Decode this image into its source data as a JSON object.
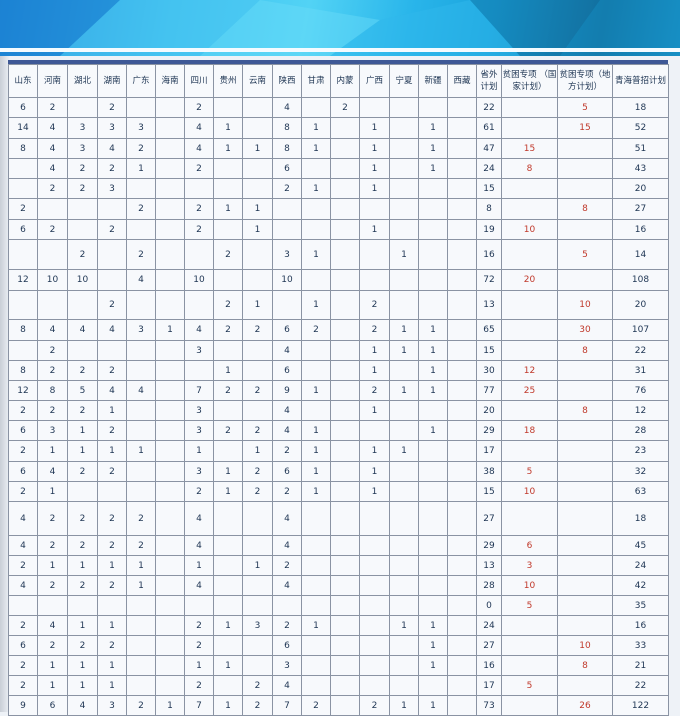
{
  "colors": {
    "header_bar": "#3e5896",
    "text": "#1e3553",
    "special": "#c0392b",
    "banner": "#29b5ea"
  },
  "table": {
    "headers": [
      "山东",
      "河南",
      "湖北",
      "湖南",
      "广东",
      "海南",
      "四川",
      "贵州",
      "云南",
      "陕西",
      "甘肃",
      "内蒙",
      "广西",
      "宁夏",
      "新疆",
      "西藏",
      "省外计划",
      "贫困专项 （国家计划）",
      "贫困专项（地方计划）",
      "青海普招计划"
    ],
    "rows": [
      [
        "6",
        "2",
        "",
        "2",
        "",
        "",
        "2",
        "",
        "",
        "4",
        "",
        "2",
        "",
        "",
        "",
        "",
        "22",
        "",
        "5",
        "18"
      ],
      [
        "14",
        "4",
        "3",
        "3",
        "3",
        "",
        "4",
        "1",
        "",
        "8",
        "1",
        "",
        "1",
        "",
        "1",
        "",
        "61",
        "",
        "15",
        "52"
      ],
      [
        "8",
        "4",
        "3",
        "4",
        "2",
        "",
        "4",
        "1",
        "1",
        "8",
        "1",
        "",
        "1",
        "",
        "1",
        "",
        "47",
        "15",
        "",
        "51"
      ],
      [
        "",
        "4",
        "2",
        "2",
        "1",
        "",
        "2",
        "",
        "",
        "6",
        "",
        "",
        "1",
        "",
        "1",
        "",
        "24",
        "8",
        "",
        "43"
      ],
      [
        "",
        "2",
        "2",
        "3",
        "",
        "",
        "",
        "",
        "",
        "2",
        "1",
        "",
        "1",
        "",
        "",
        "",
        "15",
        "",
        "",
        "20"
      ],
      [
        "2",
        "",
        "",
        "",
        "2",
        "",
        "2",
        "1",
        "1",
        "",
        "",
        "",
        "",
        "",
        "",
        "",
        "8",
        "",
        "8",
        "27"
      ],
      [
        "6",
        "2",
        "",
        "2",
        "",
        "",
        "2",
        "",
        "1",
        "",
        "",
        "",
        "1",
        "",
        "",
        "",
        "19",
        "10",
        "",
        "16"
      ],
      [
        "",
        "",
        "2",
        "",
        "2",
        "",
        "",
        "2",
        "",
        "3",
        "1",
        "",
        "",
        "1",
        "",
        "",
        "16",
        "",
        "5",
        "14"
      ],
      [
        "12",
        "10",
        "10",
        "",
        "4",
        "",
        "10",
        "",
        "",
        "10",
        "",
        "",
        "",
        "",
        "",
        "",
        "72",
        "20",
        "",
        "108"
      ],
      [
        "",
        "",
        "",
        "2",
        "",
        "",
        "",
        "2",
        "1",
        "",
        "1",
        "",
        "2",
        "",
        "",
        "",
        "13",
        "",
        "10",
        "20"
      ],
      [
        "8",
        "4",
        "4",
        "4",
        "3",
        "1",
        "4",
        "2",
        "2",
        "6",
        "2",
        "",
        "2",
        "1",
        "1",
        "",
        "65",
        "",
        "30",
        "107"
      ],
      [
        "",
        "2",
        "",
        "",
        "",
        "",
        "3",
        "",
        "",
        "4",
        "",
        "",
        "1",
        "1",
        "1",
        "",
        "15",
        "",
        "8",
        "22"
      ],
      [
        "8",
        "2",
        "2",
        "2",
        "",
        "",
        "",
        "1",
        "",
        "6",
        "",
        "",
        "1",
        "",
        "1",
        "",
        "30",
        "12",
        "",
        "31"
      ],
      [
        "12",
        "8",
        "5",
        "4",
        "4",
        "",
        "7",
        "2",
        "2",
        "9",
        "1",
        "",
        "2",
        "1",
        "1",
        "",
        "77",
        "25",
        "",
        "76"
      ],
      [
        "2",
        "2",
        "2",
        "1",
        "",
        "",
        "3",
        "",
        "",
        "4",
        "",
        "",
        "1",
        "",
        "",
        "",
        "20",
        "",
        "8",
        "12"
      ],
      [
        "6",
        "3",
        "1",
        "2",
        "",
        "",
        "3",
        "2",
        "2",
        "4",
        "1",
        "",
        "",
        "",
        "1",
        "",
        "29",
        "18",
        "",
        "28"
      ],
      [
        "2",
        "1",
        "1",
        "1",
        "1",
        "",
        "1",
        "",
        "1",
        "2",
        "1",
        "",
        "1",
        "1",
        "",
        "",
        "17",
        "",
        "",
        "23"
      ],
      [
        "6",
        "4",
        "2",
        "2",
        "",
        "",
        "3",
        "1",
        "2",
        "6",
        "1",
        "",
        "1",
        "",
        "",
        "",
        "38",
        "5",
        "",
        "32"
      ],
      [
        "2",
        "1",
        "",
        "",
        "",
        "",
        "2",
        "1",
        "2",
        "2",
        "1",
        "",
        "1",
        "",
        "",
        "",
        "15",
        "10",
        "",
        "63"
      ],
      [
        "4",
        "2",
        "2",
        "2",
        "2",
        "",
        "4",
        "",
        "",
        "4",
        "",
        "",
        "",
        "",
        "",
        "",
        "27",
        "",
        "",
        "18"
      ],
      [
        "4",
        "2",
        "2",
        "2",
        "2",
        "",
        "4",
        "",
        "",
        "4",
        "",
        "",
        "",
        "",
        "",
        "",
        "29",
        "6",
        "",
        "45"
      ],
      [
        "2",
        "1",
        "1",
        "1",
        "1",
        "",
        "1",
        "",
        "1",
        "2",
        "",
        "",
        "",
        "",
        "",
        "",
        "13",
        "3",
        "",
        "24"
      ],
      [
        "4",
        "2",
        "2",
        "2",
        "1",
        "",
        "4",
        "",
        "",
        "4",
        "",
        "",
        "",
        "",
        "",
        "",
        "28",
        "10",
        "",
        "42"
      ],
      [
        "",
        "",
        "",
        "",
        "",
        "",
        "",
        "",
        "",
        "",
        "",
        "",
        "",
        "",
        "",
        "",
        "0",
        "5",
        "",
        "35"
      ],
      [
        "2",
        "4",
        "1",
        "1",
        "",
        "",
        "2",
        "1",
        "3",
        "2",
        "1",
        "",
        "",
        "1",
        "1",
        "",
        "24",
        "",
        "",
        "16"
      ],
      [
        "6",
        "2",
        "2",
        "2",
        "",
        "",
        "2",
        "",
        "",
        "6",
        "",
        "",
        "",
        "",
        "1",
        "",
        "27",
        "",
        "10",
        "33"
      ],
      [
        "2",
        "1",
        "1",
        "1",
        "",
        "",
        "1",
        "1",
        "",
        "3",
        "",
        "",
        "",
        "",
        "1",
        "",
        "16",
        "",
        "8",
        "21"
      ],
      [
        "2",
        "1",
        "1",
        "1",
        "",
        "",
        "2",
        "",
        "2",
        "4",
        "",
        "",
        "",
        "",
        "",
        "",
        "17",
        "5",
        "",
        "22"
      ],
      [
        "9",
        "6",
        "4",
        "3",
        "2",
        "1",
        "7",
        "1",
        "2",
        "7",
        "2",
        "",
        "2",
        "1",
        "1",
        "",
        "73",
        "",
        "26",
        "122"
      ]
    ]
  }
}
